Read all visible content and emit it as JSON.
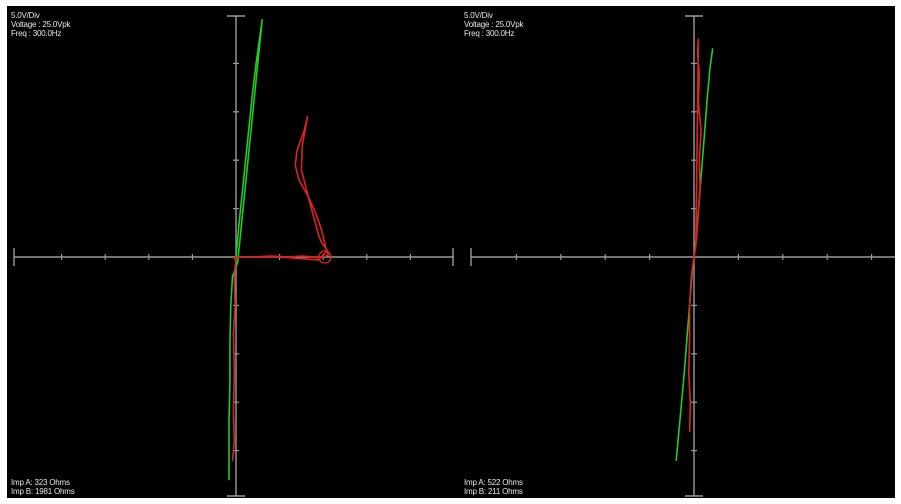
{
  "chart_data": [
    {
      "type": "line",
      "title": "",
      "xlabel": "",
      "ylabel": "",
      "settings": {
        "volts_per_div": "5.0V/Div",
        "voltage": "Voltage : 25.0Vpk",
        "frequency": "Freq : 300.0Hz"
      },
      "impedance": {
        "a": "Imp A: 323 Ohms",
        "b": "Imp B: 1981 Ohms"
      },
      "divisions": 5,
      "xlim": [
        -25,
        25
      ],
      "ylim": [
        -25,
        25
      ],
      "grid": false,
      "series": [
        {
          "color": "#22cc22",
          "x": [
            -0.1,
            0.0,
            0.3,
            0.7,
            1.1,
            1.5,
            1.9,
            2.3,
            2.7,
            3.0,
            0.2,
            -0.4,
            -0.6,
            -0.7,
            -0.7,
            -0.8,
            -0.8,
            -0.8
          ],
          "y": [
            -0.2,
            0.0,
            3.0,
            6.5,
            10.0,
            13.5,
            17.0,
            20.0,
            22.5,
            24.5,
            -0.5,
            -2.0,
            -5.0,
            -9.0,
            -13.0,
            -17.0,
            -20.0,
            -23.0
          ]
        },
        {
          "color": "#dd2222",
          "x": [
            -0.3,
            0.0,
            2.0,
            4.0,
            6.0,
            7.5,
            9.0,
            10.0,
            10.6,
            10.4,
            9.8,
            9.5,
            8.5,
            7.5,
            7.6,
            8.0,
            8.2,
            7.8,
            7.0,
            6.8,
            7.2,
            8.3,
            9.2,
            9.8,
            10.4,
            9.5,
            8.0,
            5.0,
            2.0,
            0.0,
            -0.2,
            -0.1,
            -0.3,
            -0.2,
            -0.3,
            -0.2,
            -0.4
          ],
          "y": [
            -0.1,
            0.0,
            0.0,
            0.1,
            0.0,
            0.1,
            0.0,
            0.0,
            0.2,
            0.8,
            1.5,
            2.2,
            5.5,
            9.0,
            11.5,
            13.5,
            14.5,
            13.0,
            11.0,
            9.5,
            8.0,
            6.2,
            4.4,
            2.8,
            0.6,
            -0.3,
            -0.2,
            0.0,
            0.0,
            0.0,
            -2.0,
            -5.0,
            -8.0,
            -12.0,
            -16.0,
            -19.0,
            -21.0
          ]
        }
      ],
      "annotations": [
        {
          "type": "circle",
          "x": 10.2,
          "y": 0.0,
          "r": 0.7
        }
      ]
    },
    {
      "type": "line",
      "title": "",
      "xlabel": "",
      "ylabel": "",
      "settings": {
        "volts_per_div": "5.0V/Div",
        "voltage": "Voltage : 25.0Vpk",
        "frequency": "Freq : 300.0Hz"
      },
      "impedance": {
        "a": "Imp A: 522 Ohms",
        "b": "Imp B: 211 Ohms"
      },
      "divisions": 5,
      "xlim": [
        -25,
        25
      ],
      "ylim": [
        -25,
        25
      ],
      "grid": false,
      "series": [
        {
          "color": "#22cc22",
          "x": [
            -2.0,
            -1.7,
            -1.4,
            -1.1,
            -0.8,
            -0.5,
            -0.2,
            0.0,
            0.3,
            0.6,
            0.9,
            1.2,
            1.5,
            1.8,
            2.1
          ],
          "y": [
            -21.0,
            -18.0,
            -15.0,
            -12.0,
            -8.5,
            -5.0,
            -1.5,
            0.0,
            2.5,
            6.0,
            9.5,
            13.0,
            16.5,
            19.5,
            21.5
          ]
        },
        {
          "color": "#dd2222",
          "x": [
            0.0,
            0.3,
            0.5,
            0.7,
            0.6,
            0.8,
            0.5,
            0.6,
            0.4,
            0.5,
            0.2,
            0.0,
            -0.3,
            -0.5,
            -0.5,
            -0.6,
            -0.4,
            -0.5
          ],
          "y": [
            0.0,
            2.0,
            4.5,
            7.0,
            10.0,
            13.0,
            16.0,
            19.0,
            21.0,
            22.5,
            1.0,
            0.0,
            -2.0,
            -5.0,
            -8.5,
            -12.0,
            -15.0,
            -18.0
          ]
        }
      ],
      "annotations": []
    }
  ]
}
